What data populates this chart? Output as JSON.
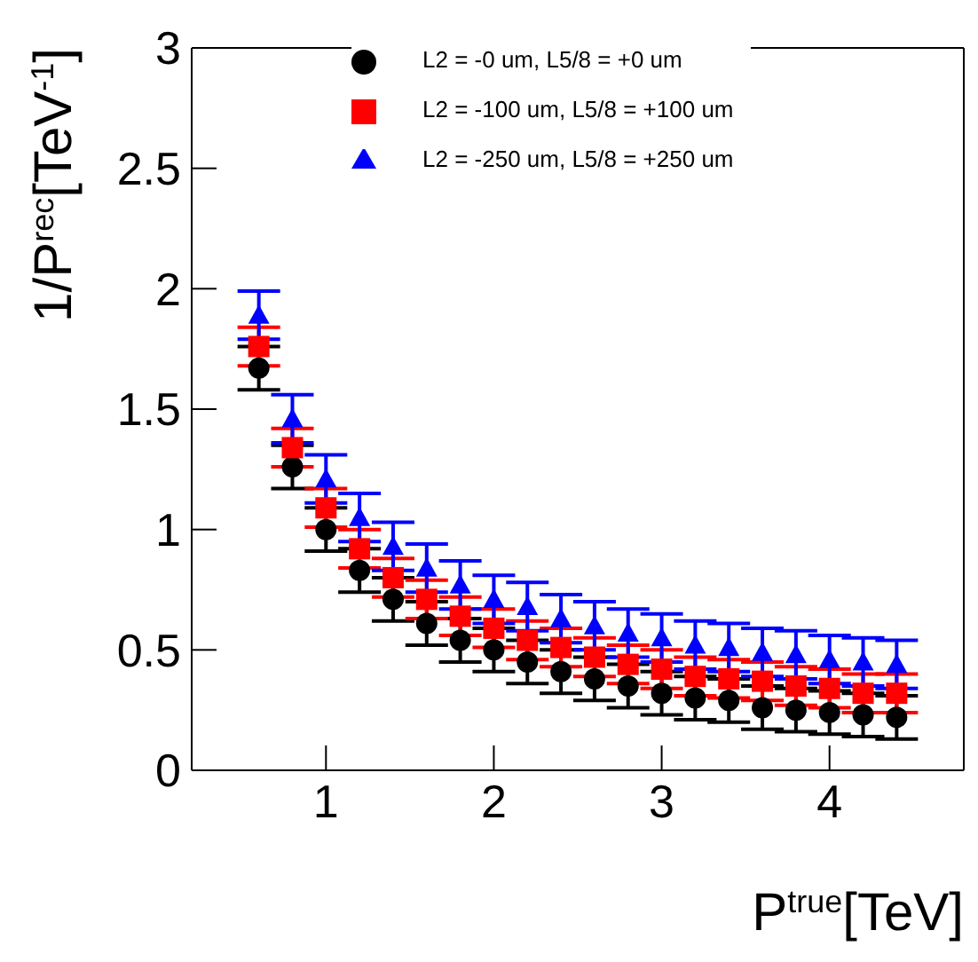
{
  "chart_data": {
    "type": "scatter",
    "xlabel": "P$^{true}$[TeV]",
    "ylabel": "1/P$^{rec}$[TeV$^{-1}$]",
    "x": [
      0.6,
      0.8,
      1.0,
      1.2,
      1.4,
      1.6,
      1.8,
      2.0,
      2.2,
      2.4,
      2.6,
      2.8,
      3.0,
      3.2,
      3.4,
      3.6,
      3.8,
      4.0,
      4.2,
      4.4
    ],
    "xlim": [
      0.2,
      4.8
    ],
    "xticks": [
      1,
      2,
      3,
      4
    ],
    "ylim": [
      0,
      3
    ],
    "yticks": [
      0,
      0.5,
      1,
      1.5,
      2,
      2.5,
      3
    ],
    "legend": "top right",
    "grid": false,
    "series": [
      {
        "name": "L2 = -0 um, L5/8 = +0 um",
        "color": "#000000",
        "marker": "circle",
        "values": [
          1.67,
          1.26,
          1.0,
          0.83,
          0.71,
          0.61,
          0.54,
          0.5,
          0.45,
          0.41,
          0.38,
          0.35,
          0.32,
          0.3,
          0.29,
          0.26,
          0.25,
          0.24,
          0.23,
          0.22
        ],
        "errors": [
          0.09,
          0.09,
          0.09,
          0.09,
          0.09,
          0.09,
          0.09,
          0.09,
          0.09,
          0.09,
          0.09,
          0.09,
          0.09,
          0.09,
          0.09,
          0.09,
          0.09,
          0.09,
          0.09,
          0.09
        ]
      },
      {
        "name": "L2 = -100 um, L5/8 = +100 um",
        "color": "#ff0000",
        "marker": "square",
        "values": [
          1.76,
          1.34,
          1.09,
          0.92,
          0.8,
          0.71,
          0.64,
          0.59,
          0.54,
          0.51,
          0.47,
          0.44,
          0.42,
          0.39,
          0.38,
          0.37,
          0.35,
          0.34,
          0.32,
          0.32
        ],
        "errors": [
          0.08,
          0.08,
          0.08,
          0.08,
          0.08,
          0.08,
          0.08,
          0.08,
          0.08,
          0.08,
          0.08,
          0.08,
          0.08,
          0.08,
          0.08,
          0.08,
          0.08,
          0.08,
          0.08,
          0.08
        ]
      },
      {
        "name": "L2 = -250 um, L5/8 = +250 um",
        "color": "#0000ff",
        "marker": "triangle",
        "values": [
          1.89,
          1.46,
          1.21,
          1.05,
          0.93,
          0.84,
          0.77,
          0.71,
          0.68,
          0.63,
          0.6,
          0.57,
          0.55,
          0.52,
          0.51,
          0.49,
          0.48,
          0.46,
          0.45,
          0.44
        ],
        "errors": [
          0.1,
          0.1,
          0.1,
          0.1,
          0.1,
          0.1,
          0.1,
          0.1,
          0.1,
          0.1,
          0.1,
          0.1,
          0.1,
          0.1,
          0.1,
          0.1,
          0.1,
          0.1,
          0.1,
          0.1
        ]
      }
    ]
  }
}
